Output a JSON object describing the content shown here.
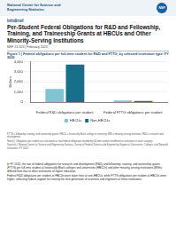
{
  "header": {
    "agency": "National Center for Science and Engineering Statistics",
    "logo": "NSF",
    "series": "InfoBrief"
  },
  "title": "Per-Student Federal Obligations for R&D and Fellowship, Training, and Traineeship Grants at HBCUs and Other Minority-Serving Institutions",
  "report_id": "NSF 23-323 | February 2023",
  "figure_title": "Figure 1 | Federal obligations per full-time student for R&D and FTTG, by selected institution type: FY 2020",
  "chart_data": {
    "type": "bar",
    "categories": [
      "Federal R&D obligations per student",
      "Federal FTTG obligations per student"
    ],
    "series": [
      {
        "name": "HBCUs",
        "color": "#7fc4d1",
        "values": [
          1300,
          160
        ]
      },
      {
        "name": "Non-HBCUs",
        "color": "#17708a",
        "values": [
          3700,
          120
        ]
      }
    ],
    "y_label": "Dollars",
    "ylim": [
      0,
      4000
    ],
    "yticks": [
      0,
      {
        "value": 1000,
        "label": "1,000"
      },
      {
        "value": 2000,
        "label": "2,000"
      },
      {
        "value": 3000,
        "label": "3,000"
      },
      {
        "value": 4000,
        "label": "4,000"
      }
    ],
    "grid": true,
    "legend": "bottom"
  },
  "notes": [
    "FTTG = fellowship, training, and traineeship grants; HBCU = historically Black college or university; MSI = minority-serving institution; R&D = research and development.",
    "Note(s): Obligations per student are calculated as total federal obligations divided by full-time student enrollment at institutions in each category.",
    "Source(s): National Center for Science and Engineering Statistics, Survey of Federal Science and Engineering Support to Universities, Colleges, and Nonprofit Institutions, FY 2020."
  ],
  "body": [
    "In FY 2020, the rate of federal obligations for research and development (R&D) and fellowship, training, and traineeship grants (FTTG) per full-time student at historically Black colleges and universities (HBCUs) and other minority-serving institutions (MSIs) differed from that at other institutions of higher education.",
    "Federal R&D obligations per student at HBCUs were lower than at non-HBCUs, while FTTG obligations per student at HBCUs were higher, reflecting federal support for training the next generation of scientists and engineers at these institutions."
  ]
}
